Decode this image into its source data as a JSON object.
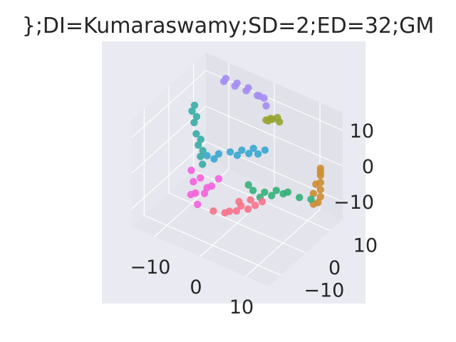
{
  "chart_data": {
    "type": "scatter",
    "projection": "3d",
    "title": "};DI=Kumaraswamy;SD=2;ED=32;GM",
    "x_ticks": [
      "−10",
      "0",
      "10"
    ],
    "y_ticks": [
      "−10",
      "0",
      "10"
    ],
    "z_ticks": [
      "−10",
      "0",
      "10"
    ],
    "xlim": [
      -15,
      15
    ],
    "ylim": [
      -15,
      15
    ],
    "zlim": [
      -15,
      15
    ],
    "grid": true,
    "legend": "none",
    "series": [
      {
        "color": "#a48cf4",
        "points": [
          [
            -9,
            12,
            13
          ],
          [
            -6,
            11,
            14
          ],
          [
            -3,
            10,
            15
          ],
          [
            0,
            9,
            15
          ],
          [
            2,
            8,
            14
          ],
          [
            -10,
            13,
            11
          ],
          [
            -7,
            12,
            12
          ],
          [
            -4,
            11,
            13
          ],
          [
            -1,
            10,
            14
          ],
          [
            1,
            9,
            15
          ]
        ]
      },
      {
        "color": "#97a431",
        "points": [
          [
            3,
            8,
            11
          ],
          [
            4,
            7,
            12
          ],
          [
            5,
            7,
            13
          ],
          [
            6,
            6,
            13
          ],
          [
            2,
            8,
            10
          ],
          [
            3,
            7,
            11
          ]
        ]
      },
      {
        "color": "#36ada4",
        "points": [
          [
            -11,
            2,
            9
          ],
          [
            -10,
            1,
            7
          ],
          [
            -9,
            0,
            5
          ],
          [
            -8,
            -1,
            3
          ],
          [
            -7,
            -2,
            1
          ],
          [
            -6,
            -3,
            0
          ],
          [
            -11,
            3,
            10
          ],
          [
            -10,
            2,
            8
          ],
          [
            -8,
            0,
            4
          ],
          [
            -7,
            -1,
            2
          ]
        ]
      },
      {
        "color": "#39a7d0",
        "points": [
          [
            -5,
            -3,
            3
          ],
          [
            -3,
            -2,
            4
          ],
          [
            -1,
            -1,
            5
          ],
          [
            1,
            0,
            6
          ],
          [
            3,
            1,
            7
          ],
          [
            5,
            2,
            7
          ],
          [
            -4,
            -2,
            2
          ],
          [
            0,
            0,
            4
          ],
          [
            2,
            1,
            5
          ],
          [
            4,
            1,
            6
          ]
        ]
      },
      {
        "color": "#f461dd",
        "points": [
          [
            -9,
            -2,
            -4
          ],
          [
            -8,
            -3,
            -6
          ],
          [
            -7,
            -4,
            -8
          ],
          [
            -6,
            -5,
            -10
          ],
          [
            -5,
            -4,
            -7
          ],
          [
            -4,
            -3,
            -5
          ],
          [
            -3,
            -2,
            -3
          ],
          [
            -7,
            -2,
            -5
          ],
          [
            -8,
            -4,
            -9
          ],
          [
            -5,
            -3,
            -6
          ]
        ]
      },
      {
        "color": "#f77189",
        "points": [
          [
            -2,
            -6,
            -9
          ],
          [
            0,
            -5,
            -9
          ],
          [
            2,
            -4,
            -8
          ],
          [
            4,
            -3,
            -7
          ],
          [
            5,
            -2,
            -6
          ],
          [
            6,
            -1,
            -5
          ],
          [
            3,
            -4,
            -6
          ],
          [
            1,
            -5,
            -8
          ],
          [
            4,
            -2,
            -5
          ],
          [
            2,
            -3,
            -6
          ]
        ]
      },
      {
        "color": "#33b07a",
        "points": [
          [
            4,
            -1,
            -3
          ],
          [
            6,
            0,
            -3
          ],
          [
            8,
            1,
            -2
          ],
          [
            10,
            2,
            -2
          ],
          [
            12,
            3,
            -3
          ],
          [
            14,
            4,
            -3
          ],
          [
            5,
            0,
            -5
          ],
          [
            7,
            1,
            -4
          ],
          [
            3,
            -1,
            -2
          ],
          [
            9,
            2,
            -3
          ]
        ]
      },
      {
        "color": "#cc8d32",
        "points": [
          [
            15,
            6,
            5
          ],
          [
            15,
            6,
            3
          ],
          [
            15,
            6,
            1
          ],
          [
            15,
            6,
            -1
          ],
          [
            15,
            6,
            -3
          ],
          [
            14,
            5,
            -5
          ],
          [
            14,
            6,
            0
          ],
          [
            15,
            6,
            4
          ],
          [
            15,
            5,
            -4
          ],
          [
            14,
            5,
            -2
          ]
        ]
      }
    ]
  }
}
